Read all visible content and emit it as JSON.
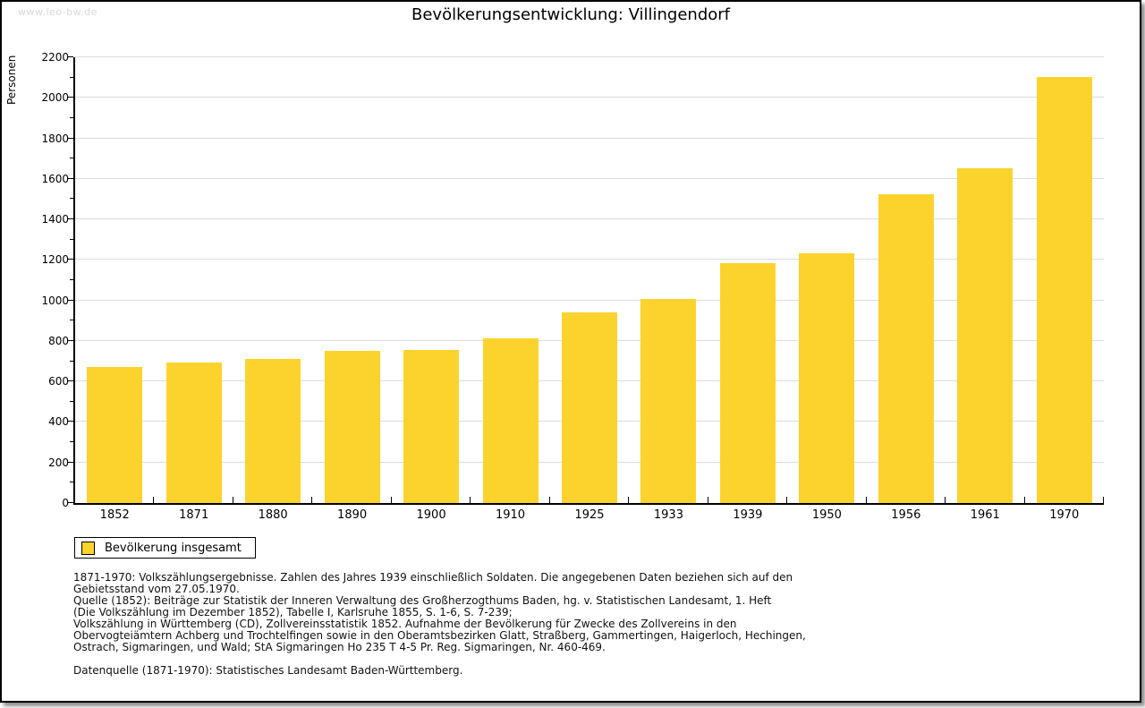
{
  "page": {
    "watermark": "www.leo-bw.de",
    "title": "Bevölkerungsentwicklung: Villingendorf"
  },
  "chart_data": {
    "type": "bar",
    "title": "Bevölkerungsentwicklung: Villingendorf",
    "xlabel": "",
    "ylabel": "Personen",
    "ylim": [
      0,
      2200
    ],
    "ytick_step": 200,
    "ytick_minor_step": 100,
    "grid": true,
    "legend_position": "bottom-left",
    "categories": [
      "1852",
      "1871",
      "1880",
      "1890",
      "1900",
      "1910",
      "1925",
      "1933",
      "1939",
      "1950",
      "1956",
      "1961",
      "1970"
    ],
    "series": [
      {
        "name": "Bevölkerung insgesamt",
        "color": "#FCD32D",
        "values": [
          672,
          694,
          712,
          750,
          756,
          813,
          939,
          1006,
          1183,
          1231,
          1524,
          1652,
          2103
        ]
      }
    ]
  },
  "legend": {
    "label": "Bevölkerung insgesamt",
    "swatch_color": "#FCD32D"
  },
  "footnotes": {
    "lines": [
      "1871-1970: Volkszählungsergebnisse. Zahlen des Jahres 1939 einschließlich Soldaten. Die angegebenen Daten beziehen sich auf den",
      "Gebietsstand vom 27.05.1970.",
      "Quelle (1852): Beiträge zur Statistik der Inneren Verwaltung des Großherzogthums Baden, hg. v. Statistischen Landesamt, 1. Heft",
      "(Die Volkszählung im Dezember 1852), Tabelle I, Karlsruhe 1855, S. 1-6, S. 7-239;",
      "Volkszählung in Württemberg (CD), Zollvereinsstatistik 1852. Aufnahme der Bevölkerung für Zwecke des Zollvereins in den",
      "Obervogteiämtern Achberg und Trochtelfingen sowie in den Oberamtsbezirken Glatt, Straßberg, Gammertingen, Haigerloch, Hechingen,",
      "Ostrach, Sigmaringen, und Wald; StA Sigmaringen Ho 235 T 4-5 Pr. Reg. Sigmaringen, Nr. 460-469."
    ],
    "datasource": "Datenquelle (1871-1970): Statistisches Landesamt Baden-Württemberg."
  },
  "colors": {
    "bar": "#FCD32D",
    "grid": "#DCDCDC",
    "axis": "#000000",
    "watermark": "#D8D8D8"
  }
}
